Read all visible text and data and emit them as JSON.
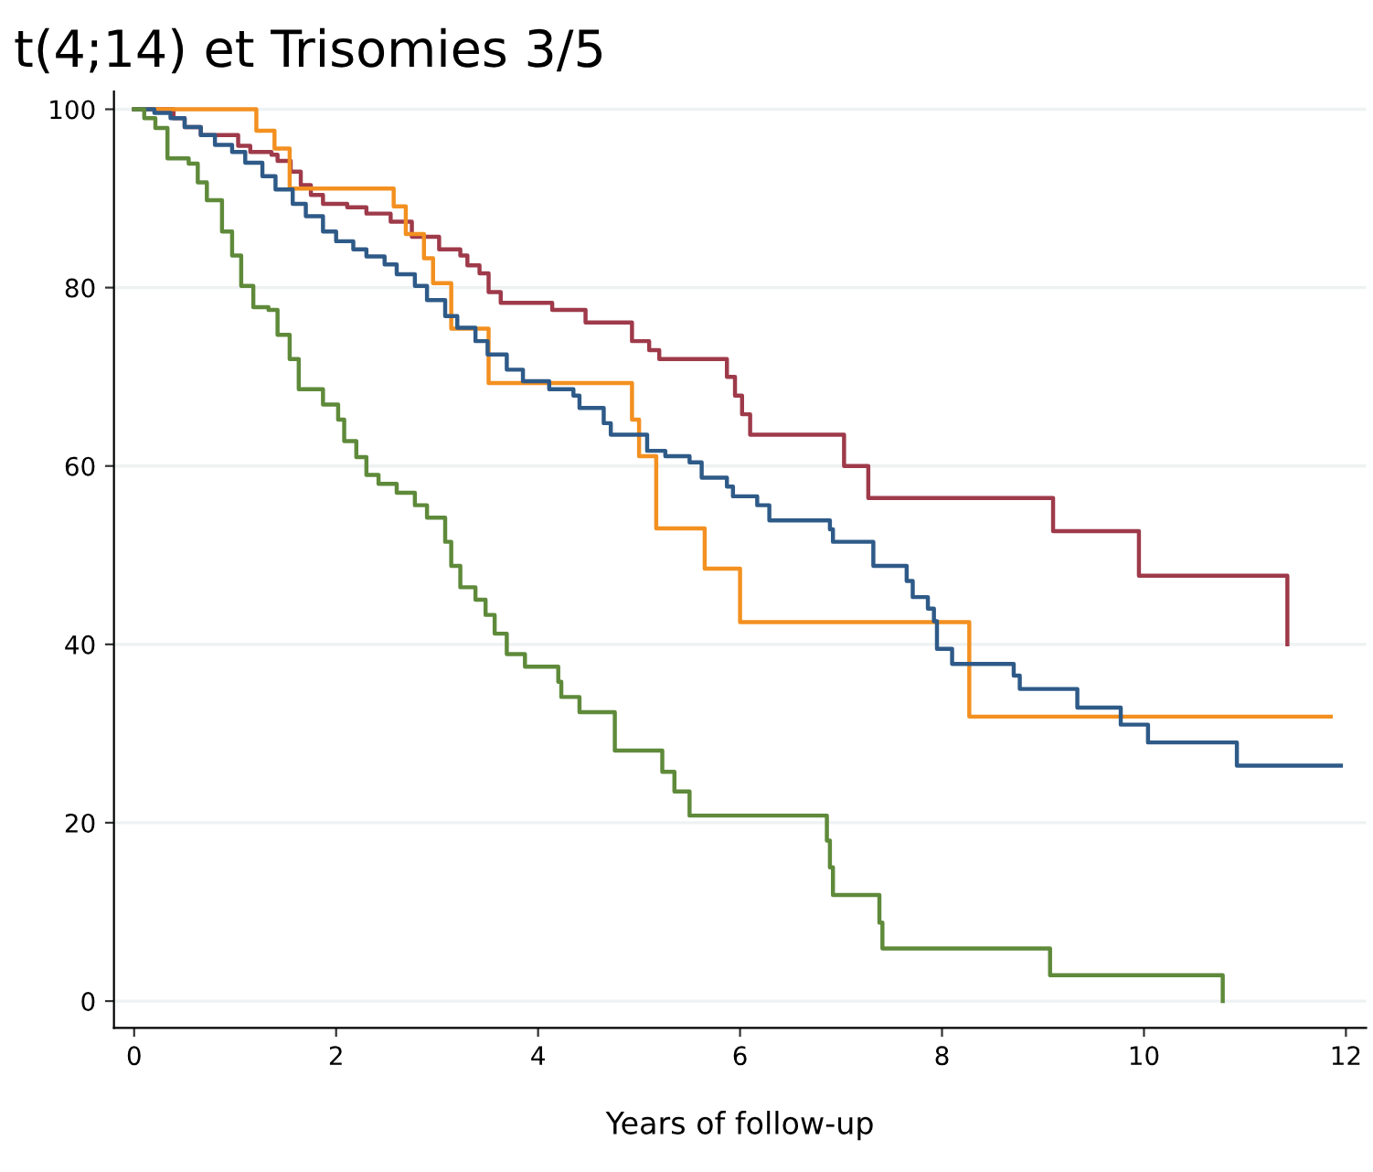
{
  "chart_data": {
    "type": "step",
    "title": "t(4;14) et Trisomies 3/5",
    "xlabel": "Years of follow-up",
    "xlim": [
      -0.2,
      12.2
    ],
    "xticks": [
      0,
      2,
      4,
      6,
      8,
      10,
      12
    ],
    "ylim": [
      -3,
      102
    ],
    "yticks": [
      0,
      20,
      40,
      60,
      80,
      100
    ],
    "grid": "y",
    "line_style": "solid",
    "series": [
      {
        "color": "#9e3a4a",
        "x": [
          0,
          0.39,
          0.5,
          0.66,
          1.03,
          1.15,
          1.36,
          1.42,
          1.55,
          1.65,
          1.75,
          1.87,
          2.11,
          2.3,
          2.54,
          2.75,
          3.02,
          3.23,
          3.3,
          3.42,
          3.51,
          3.63,
          4.14,
          4.47,
          4.93,
          5.1,
          5.2,
          5.87,
          5.95,
          6.02,
          6.1,
          7.03,
          7.27,
          9.1,
          9.95,
          11.42
        ],
        "values": [
          100,
          99,
          98,
          97.1,
          95.9,
          95.2,
          94.9,
          94.2,
          93,
          91.5,
          90.4,
          89.4,
          89.0,
          88.3,
          87.4,
          85.7,
          84.3,
          83.6,
          82.5,
          81.6,
          79.5,
          78.3,
          77.5,
          76.1,
          74,
          73,
          72,
          70,
          67.9,
          65.8,
          63.5,
          60,
          56.4,
          52.7,
          47.7,
          40
        ]
      },
      {
        "color": "#f39020",
        "x": [
          0,
          1.21,
          1.39,
          1.54,
          2.57,
          2.69,
          2.87,
          2.96,
          3.14,
          3.51,
          4.93,
          5.0,
          5.17,
          5.65,
          6.0,
          8.27,
          11.85
        ],
        "values": [
          100,
          97.6,
          95.6,
          91.1,
          89.1,
          86,
          83.3,
          80.5,
          75.4,
          69.3,
          65.2,
          61.1,
          53,
          48.5,
          42.5,
          31.9,
          31.9
        ]
      },
      {
        "color": "#2e5a88",
        "x": [
          0,
          0.2,
          0.36,
          0.5,
          0.66,
          0.8,
          0.97,
          1.1,
          1.27,
          1.4,
          1.57,
          1.7,
          1.87,
          2.0,
          2.17,
          2.3,
          2.48,
          2.6,
          2.78,
          2.9,
          3.08,
          3.2,
          3.38,
          3.5,
          3.69,
          3.85,
          4.11,
          4.35,
          4.41,
          4.65,
          4.72,
          5.08,
          5.26,
          5.5,
          5.62,
          5.87,
          5.93,
          6.17,
          6.29,
          6.89,
          6.92,
          7.32,
          7.65,
          7.71,
          7.86,
          7.92,
          7.95,
          8.1,
          8.71,
          8.77,
          9.34,
          9.77,
          10.04,
          10.92,
          11.95
        ],
        "values": [
          100,
          99.6,
          99,
          98,
          97.1,
          96,
          95.2,
          94,
          92.5,
          91,
          89.4,
          88,
          86.3,
          85.2,
          84.3,
          83.5,
          82.6,
          81.5,
          80.2,
          78.6,
          76.8,
          75.5,
          74,
          72.5,
          70.8,
          69.5,
          68.6,
          67.9,
          66.5,
          64.8,
          63.5,
          61.7,
          61.1,
          60.4,
          58.7,
          57.7,
          56.6,
          55.6,
          53.9,
          52.9,
          51.5,
          48.8,
          47.1,
          45.3,
          44,
          42.6,
          39.5,
          37.8,
          36.5,
          35,
          32.9,
          31,
          29,
          26.4,
          26.4
        ]
      },
      {
        "color": "#5e8a3a",
        "x": [
          0,
          0.1,
          0.21,
          0.33,
          0.54,
          0.63,
          0.72,
          0.87,
          0.97,
          1.06,
          1.18,
          1.33,
          1.42,
          1.54,
          1.63,
          1.87,
          2.02,
          2.08,
          2.2,
          2.3,
          2.42,
          2.6,
          2.78,
          2.9,
          3.08,
          3.14,
          3.23,
          3.38,
          3.48,
          3.57,
          3.69,
          3.87,
          4.2,
          4.23,
          4.41,
          4.76,
          5.23,
          5.35,
          5.5,
          6.86,
          6.89,
          6.92,
          7.38,
          7.41,
          9.07,
          10.78
        ],
        "values": [
          100,
          99,
          97.9,
          94.5,
          93.9,
          91.8,
          89.8,
          86.3,
          83.6,
          80.2,
          77.8,
          77.5,
          74.7,
          72,
          68.6,
          66.9,
          65.2,
          62.8,
          61,
          59,
          58,
          57,
          55.6,
          54.2,
          51.5,
          48.8,
          46.4,
          45,
          43.3,
          41.2,
          38.9,
          37.5,
          35.8,
          34.1,
          32.4,
          28.1,
          25.7,
          23.5,
          20.8,
          18,
          15,
          11.9,
          8.8,
          5.9,
          2.9,
          0
        ]
      }
    ]
  }
}
